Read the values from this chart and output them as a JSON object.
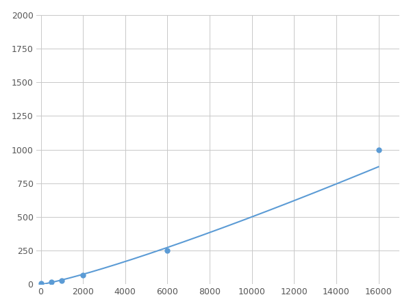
{
  "x_points": [
    0,
    500,
    1000,
    2000,
    6000,
    16000
  ],
  "y_points": [
    8,
    18,
    28,
    68,
    250,
    1000
  ],
  "line_color": "#5b9bd5",
  "marker_color": "#5b9bd5",
  "marker_size": 5,
  "line_width": 1.5,
  "xlim": [
    -200,
    17000
  ],
  "ylim": [
    0,
    2000
  ],
  "xticks": [
    0,
    2000,
    4000,
    6000,
    8000,
    10000,
    12000,
    14000,
    16000
  ],
  "yticks": [
    0,
    250,
    500,
    750,
    1000,
    1250,
    1500,
    1750,
    2000
  ],
  "grid_color": "#c8c8c8",
  "bg_color": "#ffffff",
  "fig_bg_color": "#ffffff",
  "tick_fontsize": 9,
  "tick_color": "#555555"
}
